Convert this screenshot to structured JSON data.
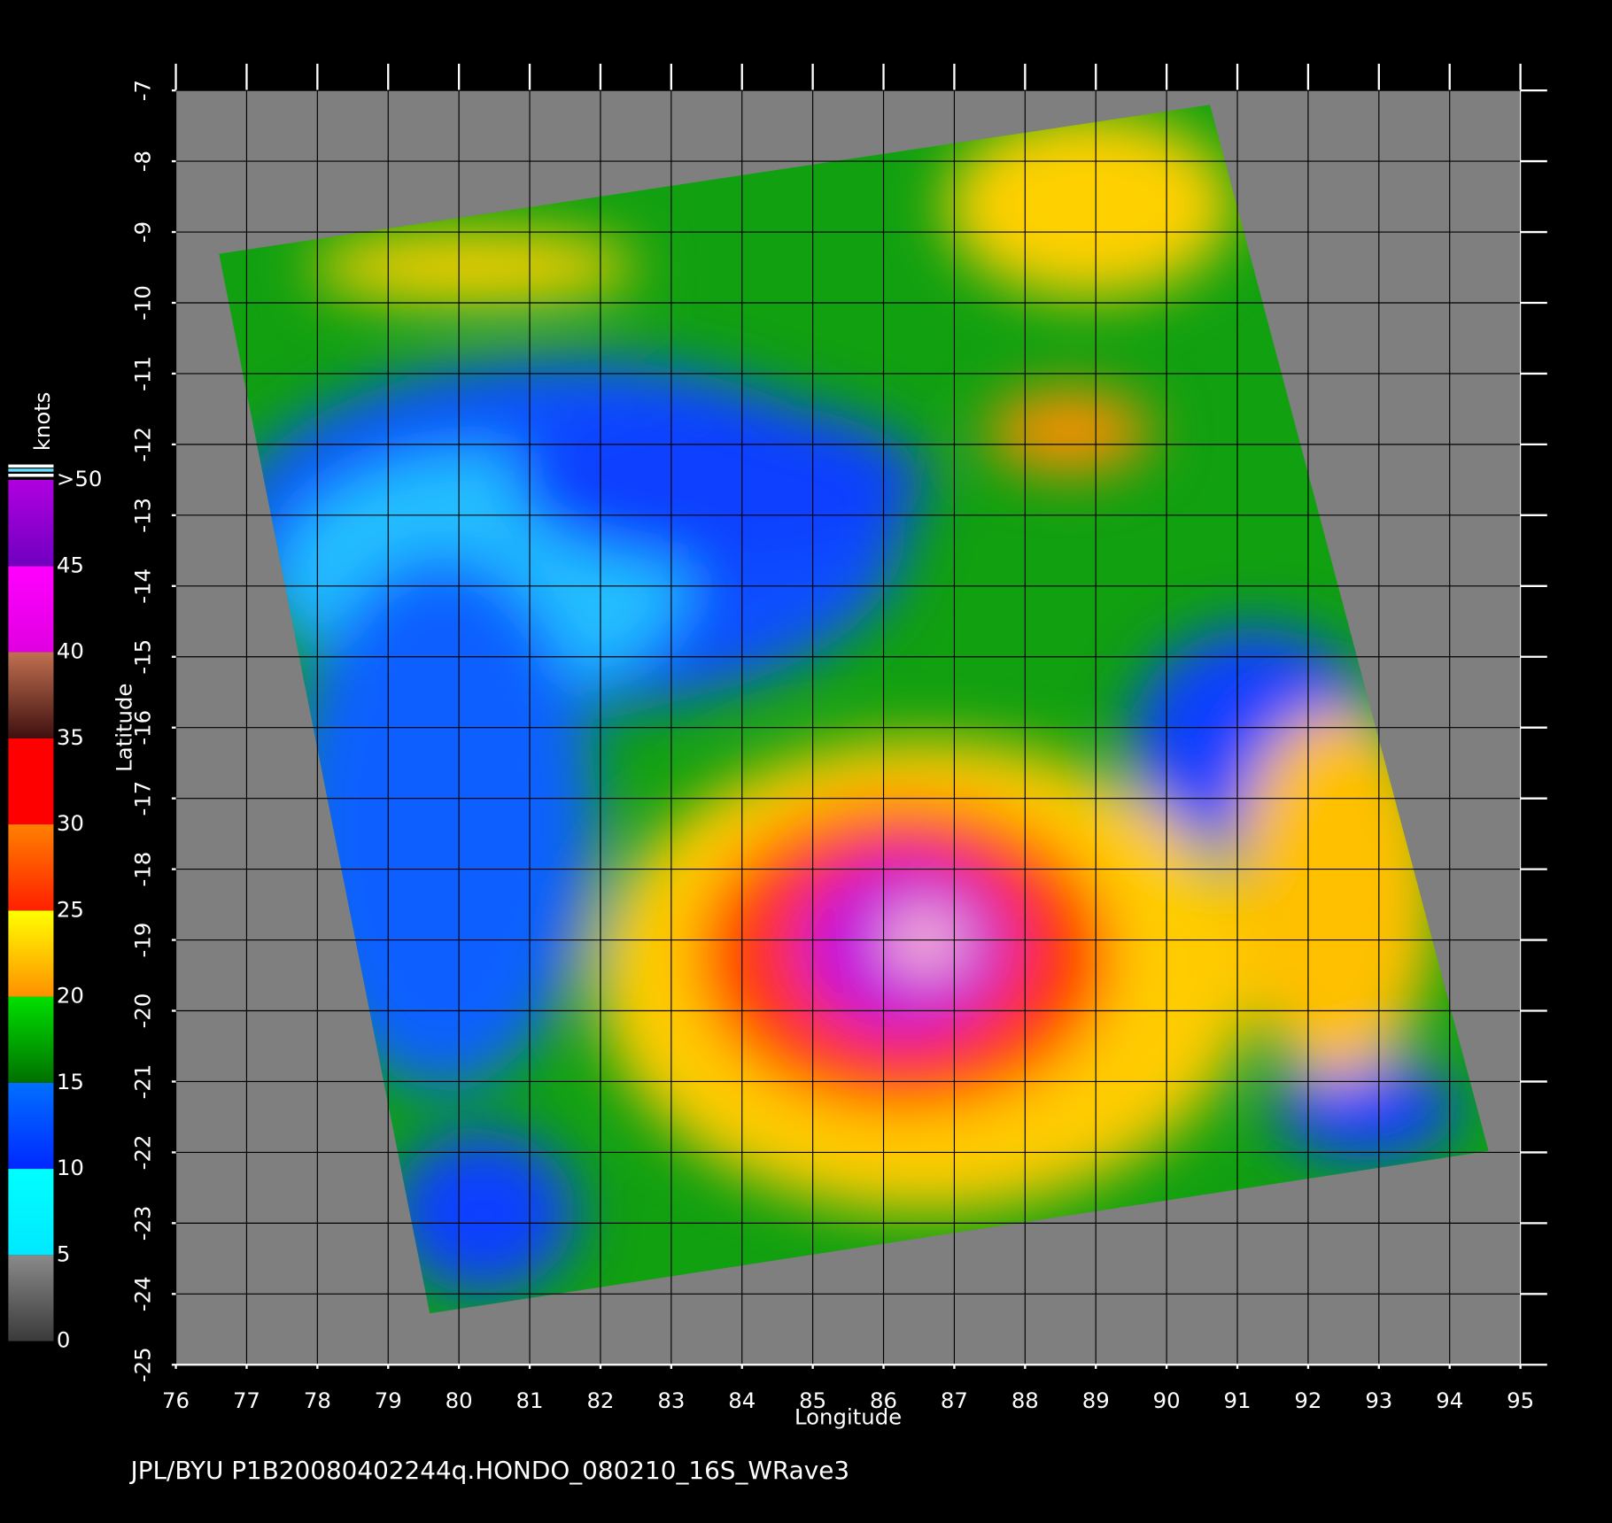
{
  "chart_data": {
    "type": "map",
    "xlabel": "Longitude",
    "ylabel": "Latitude",
    "xlim": [
      76,
      95
    ],
    "ylim": [
      -25,
      -7
    ],
    "xticks": [
      76,
      77,
      78,
      79,
      80,
      81,
      82,
      83,
      84,
      85,
      86,
      87,
      88,
      89,
      90,
      91,
      92,
      93,
      94,
      95
    ],
    "yticks": [
      -7,
      -8,
      -9,
      -10,
      -11,
      -12,
      -13,
      -14,
      -15,
      -16,
      -17,
      -18,
      -19,
      -20,
      -21,
      -22,
      -23,
      -24,
      -25
    ],
    "grid": true,
    "colorbar": {
      "label": "knots",
      "lim": [
        0,
        50
      ],
      "ticks": [
        0,
        5,
        10,
        15,
        20,
        25,
        30,
        35,
        40,
        45,
        {
          "value": 50,
          "label": ">50"
        }
      ],
      "colors": [
        [
          "#3a3a3a",
          "#8a8a8a"
        ],
        [
          "#00e8ff",
          "#00ffff"
        ],
        [
          "#0028ff",
          "#0070ff"
        ],
        [
          "#007000",
          "#00e000"
        ],
        [
          "#ff9000",
          "#ffff00"
        ],
        [
          "#ff2000",
          "#ff8000"
        ],
        [
          "#ff0000",
          "#ff0000"
        ],
        [
          "#401010",
          "#c07050"
        ],
        [
          "#e000e0",
          "#ff00ff"
        ],
        [
          "#7000c0",
          "#b000e0"
        ]
      ]
    },
    "footer": "JPL/BYU  P1B20080402244q.HONDO_080210_16S_WRave3"
  }
}
